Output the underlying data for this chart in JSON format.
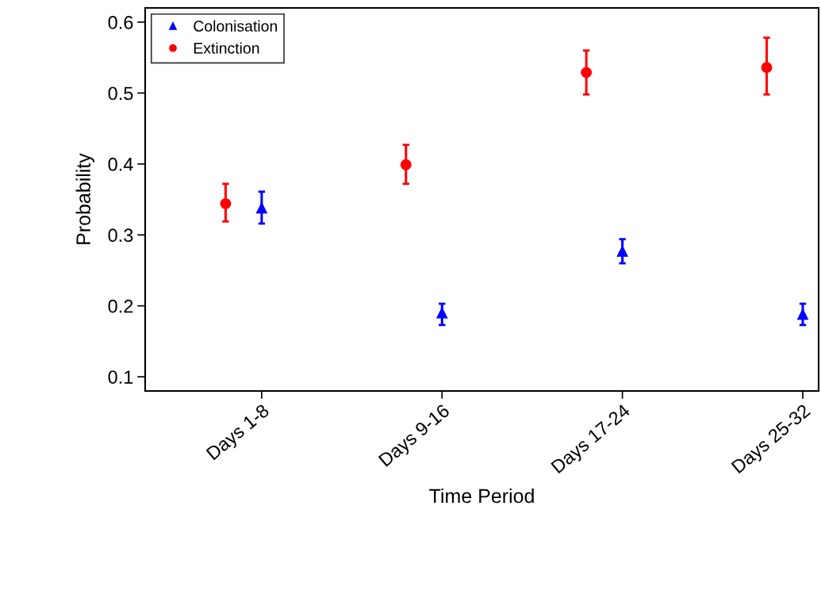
{
  "chart_data": {
    "type": "scatter",
    "xlabel": "Time Period",
    "ylabel": "Probability",
    "categories": [
      "Days 1-8",
      "Days 9-16",
      "Days 17-24",
      "Days 25-32"
    ],
    "series": [
      {
        "name": "Colonisation",
        "color": "#0000ff",
        "marker": "triangle",
        "values": [
          0.338,
          0.19,
          0.277,
          0.188
        ],
        "errors": [
          [
            0.316,
            0.361
          ],
          [
            0.173,
            0.203
          ],
          [
            0.26,
            0.294
          ],
          [
            0.173,
            0.203
          ]
        ]
      },
      {
        "name": "Extinction",
        "color": "#ff0000",
        "marker": "circle",
        "values": [
          0.344,
          0.399,
          0.529,
          0.536
        ],
        "errors": [
          [
            0.319,
            0.372
          ],
          [
            0.372,
            0.427
          ],
          [
            0.498,
            0.56
          ],
          [
            0.498,
            0.578
          ]
        ]
      }
    ],
    "ylim": [
      0.08,
      0.62
    ],
    "yticks": [
      0.1,
      0.2,
      0.3,
      0.4,
      0.5,
      0.6
    ],
    "grid": false,
    "legend": "top left"
  }
}
